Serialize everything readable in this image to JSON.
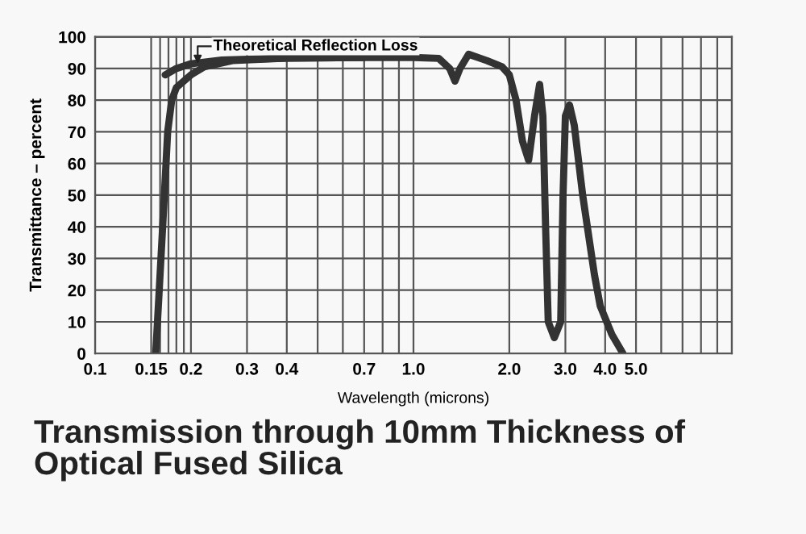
{
  "chart_data": {
    "type": "line",
    "title": "Transmission through 10mm Thickness of\nOptical Fused Silica",
    "xlabel": "Wavelength (microns)",
    "ylabel": "Transmittance – percent",
    "log": "x",
    "grid": true,
    "marker": "none",
    "line_style": "solid",
    "xlim": [
      0.1,
      10
    ],
    "ylim": [
      0,
      100
    ],
    "xticks": [
      0.1,
      {
        "value": 0.15,
        "label": "0.15"
      },
      {
        "value": 0.16,
        "label": null
      },
      {
        "value": 0.17,
        "label": null
      },
      {
        "value": 0.18,
        "label": null
      },
      {
        "value": 0.19,
        "label": null
      },
      0.2,
      0.3,
      0.4,
      {
        "value": 0.5,
        "label": null
      },
      {
        "value": 0.6,
        "label": null
      },
      0.7,
      {
        "value": 0.8,
        "label": null
      },
      {
        "value": 0.9,
        "label": null
      },
      {
        "value": 1,
        "label": "1.0"
      },
      {
        "value": 2,
        "label": "2.0"
      },
      {
        "value": 3,
        "label": "3.0"
      },
      {
        "value": 4,
        "label": "4.0"
      },
      {
        "value": 5,
        "label": "5.0"
      },
      {
        "value": 6,
        "label": null
      },
      {
        "value": 7,
        "label": null
      },
      {
        "value": 8,
        "label": null
      },
      {
        "value": 9,
        "label": null
      },
      {
        "value": 10,
        "label": null
      }
    ],
    "yticks": [
      0,
      10,
      20,
      30,
      40,
      50,
      60,
      70,
      80,
      90,
      100
    ],
    "series": [
      {
        "color": "#333333",
        "x": [
          0.155,
          0.159,
          0.165,
          0.169,
          0.174,
          0.18,
          0.2,
          0.22,
          0.27,
          0.4,
          0.7,
          1.0,
          1.2,
          1.3,
          1.35,
          1.4,
          1.49,
          1.7,
          1.9,
          2.0,
          2.1,
          2.2,
          2.3,
          2.4,
          2.49,
          2.55,
          2.6,
          2.65,
          2.77,
          2.9,
          2.95,
          3.0,
          3.09,
          3.2,
          3.4,
          3.7,
          3.86,
          4.2,
          4.55
        ],
        "values": [
          0,
          20,
          50,
          70,
          80,
          84,
          88,
          90.5,
          92.5,
          93.3,
          93.5,
          93.5,
          93.2,
          90,
          86,
          90,
          94.5,
          92.5,
          90.5,
          88,
          80,
          67,
          61,
          75,
          85,
          75,
          40,
          10,
          5,
          10,
          50,
          75,
          78.5,
          72,
          50,
          25,
          15,
          6,
          0
        ]
      },
      {
        "color": "#333333",
        "x": [
          0.166,
          0.18,
          0.2,
          0.25,
          0.4,
          0.7
        ],
        "values": [
          88,
          90,
          91.5,
          92.7,
          93.3,
          93.5
        ]
      }
    ],
    "annotations": [
      {
        "text": "Theoretical Reflection Loss",
        "x": 0.21,
        "y": 91.5
      }
    ]
  }
}
